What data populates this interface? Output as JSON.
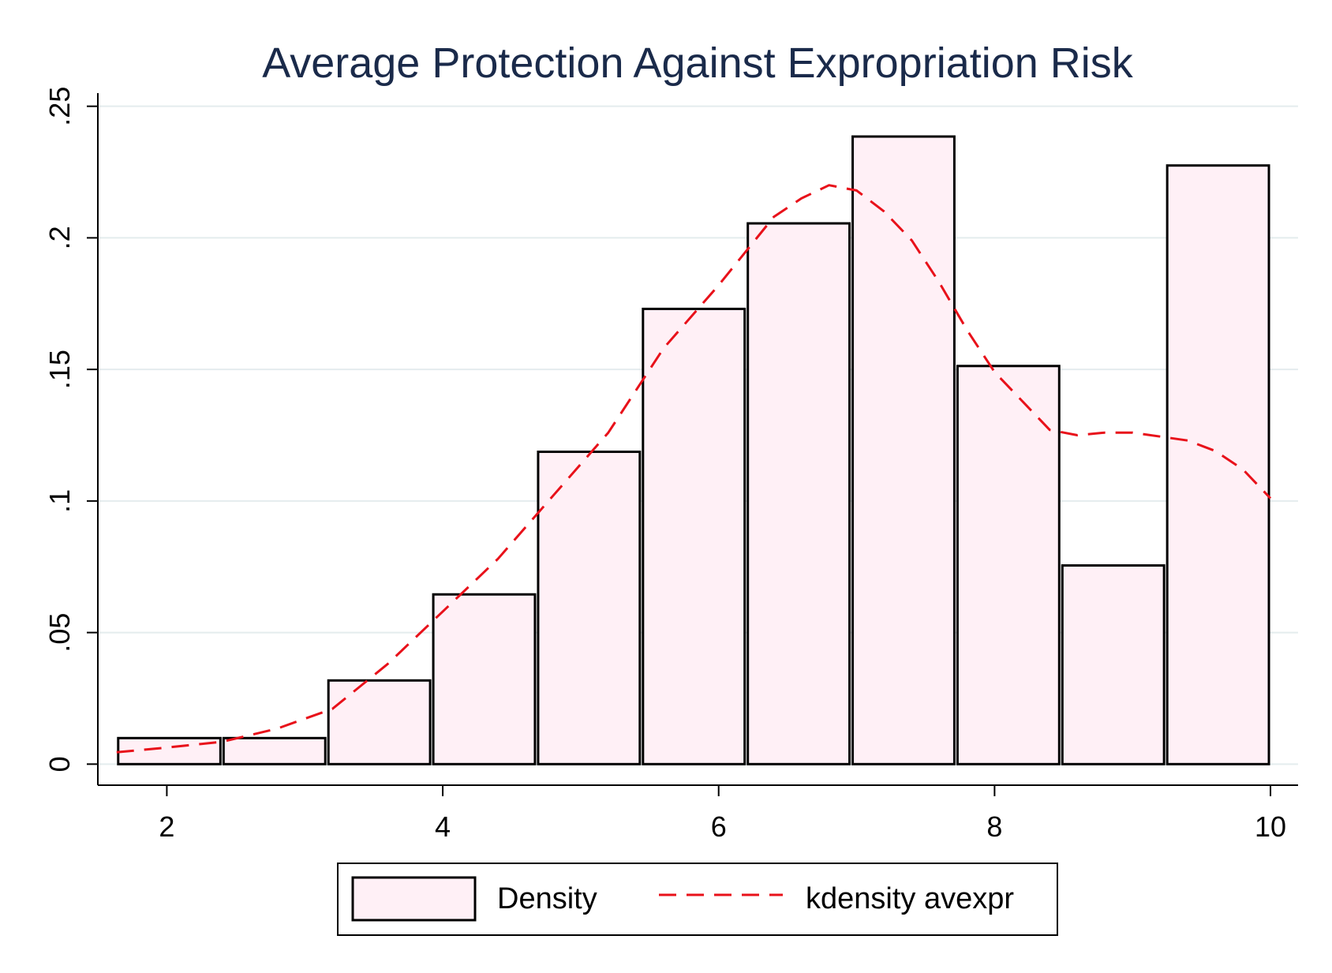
{
  "chart_data": {
    "type": "bar",
    "title": "Average Protection Against Expropriation Risk",
    "xlabel": "",
    "ylabel": "",
    "xlim": [
      1.5,
      10.2
    ],
    "ylim": [
      -0.008,
      0.255
    ],
    "x_ticks": [
      2,
      4,
      6,
      8,
      10
    ],
    "x_tick_labels": [
      "2",
      "4",
      "6",
      "8",
      "10"
    ],
    "y_ticks": [
      0,
      0.05,
      0.1,
      0.15,
      0.2,
      0.25
    ],
    "y_tick_labels": [
      "0",
      ".05",
      ".1",
      ".15",
      ".2",
      ".25"
    ],
    "grid": true,
    "legend": {
      "position": "bottom",
      "entries": [
        "Density",
        "kdensity avexpr"
      ]
    },
    "series": [
      {
        "name": "Density",
        "type": "histogram",
        "color": "#fff0f6",
        "edge_color": "#000000",
        "bins": [
          {
            "x0": 1.636,
            "x1": 2.4,
            "value": 0.0099
          },
          {
            "x0": 2.4,
            "x1": 3.16,
            "value": 0.0099
          },
          {
            "x0": 3.16,
            "x1": 3.92,
            "value": 0.0318
          },
          {
            "x0": 3.92,
            "x1": 4.68,
            "value": 0.0645
          },
          {
            "x0": 4.68,
            "x1": 5.44,
            "value": 0.1187
          },
          {
            "x0": 5.44,
            "x1": 6.2,
            "value": 0.173
          },
          {
            "x0": 6.2,
            "x1": 6.96,
            "value": 0.2055
          },
          {
            "x0": 6.96,
            "x1": 7.72,
            "value": 0.2385
          },
          {
            "x0": 7.72,
            "x1": 8.48,
            "value": 0.1513
          },
          {
            "x0": 8.48,
            "x1": 9.24,
            "value": 0.0755
          },
          {
            "x0": 9.24,
            "x1": 10.0,
            "value": 0.2275
          }
        ]
      },
      {
        "name": "kdensity avexpr",
        "type": "line",
        "style": "dashed",
        "color": "#e8111a",
        "x": [
          1.636,
          2.0,
          2.4,
          2.8,
          3.2,
          3.6,
          4.0,
          4.4,
          4.8,
          5.2,
          5.6,
          6.0,
          6.2,
          6.4,
          6.6,
          6.8,
          7.0,
          7.2,
          7.4,
          7.6,
          7.8,
          8.0,
          8.2,
          8.4,
          8.6,
          8.8,
          9.0,
          9.2,
          9.4,
          9.6,
          9.8,
          10.0
        ],
        "y": [
          0.0045,
          0.0063,
          0.0085,
          0.0135,
          0.021,
          0.038,
          0.058,
          0.078,
          0.102,
          0.126,
          0.158,
          0.182,
          0.195,
          0.208,
          0.215,
          0.22,
          0.218,
          0.21,
          0.199,
          0.183,
          0.165,
          0.149,
          0.138,
          0.127,
          0.125,
          0.126,
          0.126,
          0.1245,
          0.123,
          0.119,
          0.112,
          0.101
        ]
      }
    ]
  }
}
